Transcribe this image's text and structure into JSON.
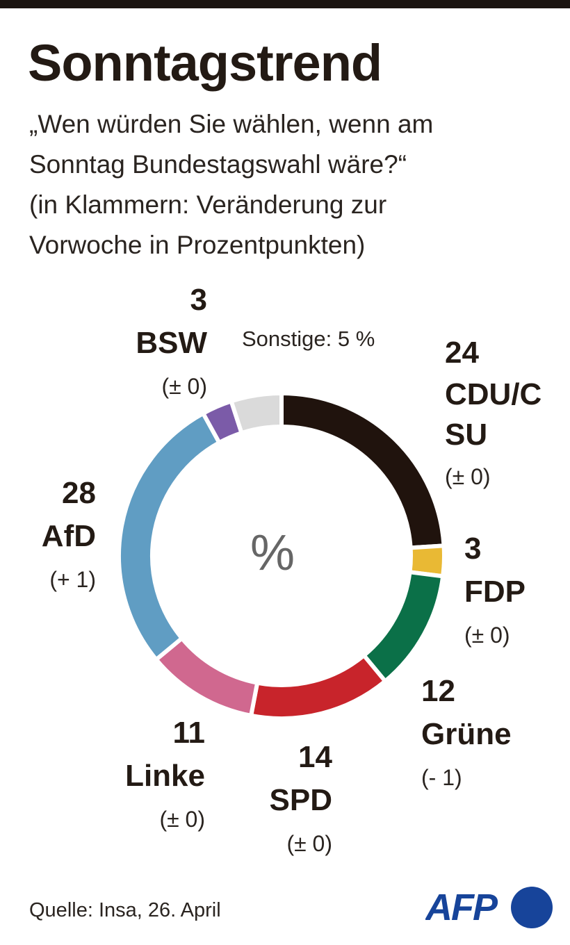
{
  "title": "Sonntagstrend",
  "subtitle": [
    "„Wen würden Sie wählen, wenn am",
    "Sonntag Bundestagswahl wäre?“",
    "(in Klammern: Veränderung zur",
    "Vorwoche in Prozentpunkten)"
  ],
  "source": "Quelle: Insa, 26. April",
  "logo": "AFP",
  "chart_data": {
    "type": "pie",
    "donut": true,
    "center_label": "%",
    "series": [
      {
        "name": "CDU/CSU",
        "value": 24,
        "change": "(± 0)",
        "color": "#20130d"
      },
      {
        "name": "FDP",
        "value": 3,
        "change": "(± 0)",
        "color": "#e9b934"
      },
      {
        "name": "Grüne",
        "value": 12,
        "change": "(- 1)",
        "color": "#0b7048"
      },
      {
        "name": "SPD",
        "value": 14,
        "change": "(± 0)",
        "color": "#c8242b"
      },
      {
        "name": "Linke",
        "value": 11,
        "change": "(± 0)",
        "color": "#d0688f"
      },
      {
        "name": "AfD",
        "value": 28,
        "change": "(+ 1)",
        "color": "#609dc3"
      },
      {
        "name": "BSW",
        "value": 3,
        "change": "(± 0)",
        "color": "#7b5ba8"
      },
      {
        "name": "Sonstige",
        "value": 5,
        "label": "Sonstige: 5 %",
        "color": "#dadada"
      }
    ]
  }
}
